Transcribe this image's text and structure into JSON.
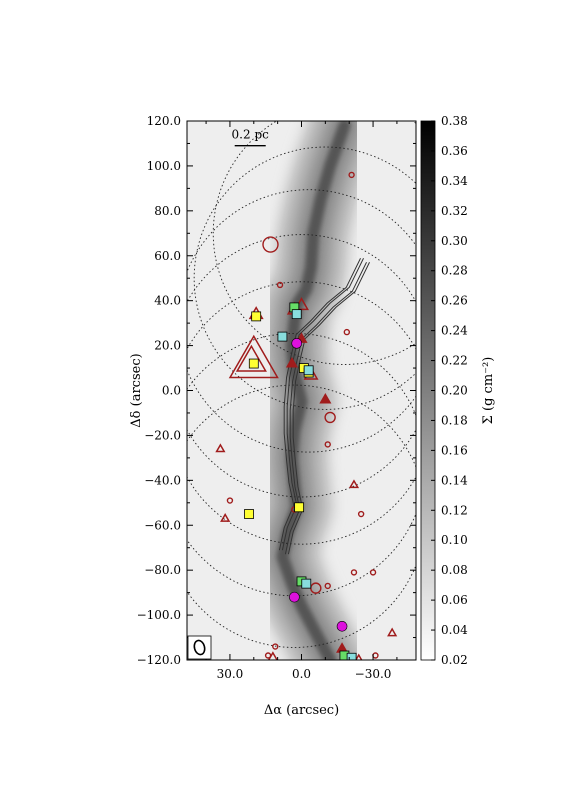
{
  "chart_data": {
    "type": "heatmap",
    "title": "",
    "xlabel": "Δα (arcsec)",
    "ylabel": "Δδ (arcsec)",
    "colorbar_label": "Σ (g cm⁻²)",
    "xlim": [
      48,
      -48
    ],
    "ylim": [
      -120,
      120
    ],
    "x_ticks": [
      30,
      0,
      -30
    ],
    "x_tick_labels": [
      "30.0",
      "0.0",
      "−30.0"
    ],
    "y_ticks": [
      120,
      100,
      80,
      60,
      40,
      20,
      0,
      -20,
      -40,
      -60,
      -80,
      -100,
      -120
    ],
    "y_tick_labels": [
      "120.0",
      "100.0",
      "80.0",
      "60.0",
      "40.0",
      "20.0",
      "0.0",
      "−20.0",
      "−40.0",
      "−60.0",
      "−80.0",
      "−100.0",
      "−120.0"
    ],
    "colorbar_range": [
      0.02,
      0.38
    ],
    "colorbar_ticks": [
      0.38,
      0.36,
      0.34,
      0.32,
      0.3,
      0.28,
      0.26,
      0.24,
      0.22,
      0.2,
      0.18,
      0.16,
      0.14,
      0.12,
      0.1,
      0.08,
      0.06,
      0.04,
      0.02
    ],
    "colorbar_tick_labels": [
      "0.38",
      "0.36",
      "0.34",
      "0.32",
      "0.30",
      "0.28",
      "0.26",
      "0.24",
      "0.22",
      "0.20",
      "0.18",
      "0.16",
      "0.14",
      "0.12",
      "0.10",
      "0.08",
      "0.06",
      "0.04",
      "0.02"
    ],
    "colormap": [
      "#ffffff",
      "#000000"
    ],
    "scale_bar_label": "0.2 pc",
    "scale_bar_length_arcsec": 13,
    "filament_spine": [
      [
        -18,
        118
      ],
      [
        -12,
        100
      ],
      [
        -8,
        85
      ],
      [
        -5,
        70
      ],
      [
        -4,
        55
      ],
      [
        -2,
        45
      ],
      [
        2,
        38
      ],
      [
        3,
        30
      ],
      [
        4,
        20
      ],
      [
        3,
        8
      ],
      [
        0,
        -5
      ],
      [
        3,
        -18
      ],
      [
        4,
        -30
      ],
      [
        3,
        -42
      ],
      [
        2,
        -52
      ],
      [
        6,
        -64
      ],
      [
        8,
        -74
      ],
      [
        4,
        -86
      ],
      [
        0,
        -96
      ],
      [
        -6,
        -108
      ],
      [
        -12,
        -120
      ]
    ],
    "fov_circles": {
      "color": "#222222",
      "radius_arcsec": 25,
      "centers": [
        [
          -18,
          70
        ],
        [
          -10,
          50
        ],
        [
          -3,
          31
        ],
        [
          0,
          11
        ],
        [
          0,
          -10
        ],
        [
          3,
          -33
        ],
        [
          3,
          -56
        ]
      ]
    },
    "contours": {
      "color": "#333333",
      "segments": [
        [
          -26,
          58
        ],
        [
          -20,
          45
        ],
        [
          -12,
          38
        ],
        [
          -5,
          30
        ],
        [
          1,
          24
        ],
        [
          3,
          15
        ],
        [
          5,
          5
        ],
        [
          6,
          -8
        ],
        [
          6,
          -20
        ],
        [
          5,
          -32
        ],
        [
          4,
          -42
        ],
        [
          2,
          -52
        ],
        [
          6,
          -62
        ],
        [
          8,
          -72
        ]
      ]
    },
    "beam": {
      "major_arcsec": 5,
      "minor_arcsec": 3.5
    },
    "markers": {
      "red_open_circles": {
        "color": "#a01c1c",
        "points": [
          [
            -21,
            96,
            1
          ],
          [
            13,
            65,
            3
          ],
          [
            9,
            47,
            1
          ],
          [
            -19,
            26,
            1
          ],
          [
            -12,
            -12,
            2
          ],
          [
            -11,
            -24,
            1
          ],
          [
            30,
            -49,
            1
          ],
          [
            -25,
            -55,
            1
          ],
          [
            -22,
            -81,
            1
          ],
          [
            -6,
            -88,
            2
          ],
          [
            -30,
            -81,
            1
          ],
          [
            3,
            -53,
            1
          ],
          [
            11,
            -114,
            1
          ],
          [
            14,
            -118,
            1
          ],
          [
            -11,
            -87,
            1
          ],
          [
            -31,
            -118,
            1
          ]
        ]
      },
      "red_open_triangles": {
        "color": "#a01c1c",
        "points": [
          [
            20,
            13,
            5
          ],
          [
            21,
            13,
            3
          ],
          [
            19,
            34,
            1.3
          ],
          [
            0,
            38,
            1.3
          ],
          [
            3,
            36,
            1.3
          ],
          [
            -4,
            7,
            1.3
          ],
          [
            34,
            -26,
            0.8
          ],
          [
            32,
            -57,
            0.8
          ],
          [
            -22,
            -42,
            0.8
          ],
          [
            -38,
            -108,
            0.8
          ],
          [
            12,
            -119,
            1
          ],
          [
            -24,
            -120,
            1
          ]
        ]
      },
      "red_filled_triangles": {
        "color": "#a01c1c",
        "points": [
          [
            0,
            23,
            1
          ],
          [
            4,
            12,
            1
          ],
          [
            -10,
            -4,
            1
          ],
          [
            -17,
            -115,
            1
          ]
        ]
      },
      "yellow_squares": {
        "color": "#ffff33",
        "points": [
          [
            20,
            12
          ],
          [
            19,
            33
          ],
          [
            -1,
            10
          ],
          [
            1,
            -52
          ],
          [
            22,
            -55
          ],
          [
            -3,
            8
          ]
        ]
      },
      "green_squares": {
        "color": "#66dd66",
        "points": [
          [
            3,
            37
          ],
          [
            0,
            -85
          ],
          [
            -18,
            -118
          ]
        ]
      },
      "cyan_squares": {
        "color": "#88dddd",
        "points": [
          [
            2,
            34
          ],
          [
            8,
            24
          ],
          [
            -3,
            9
          ],
          [
            -21,
            -119
          ],
          [
            -2,
            -86
          ]
        ]
      },
      "magenta_circles": {
        "color": "#dd11dd",
        "points": [
          [
            2,
            21
          ],
          [
            3,
            -92
          ],
          [
            -17,
            -105
          ]
        ]
      }
    }
  }
}
